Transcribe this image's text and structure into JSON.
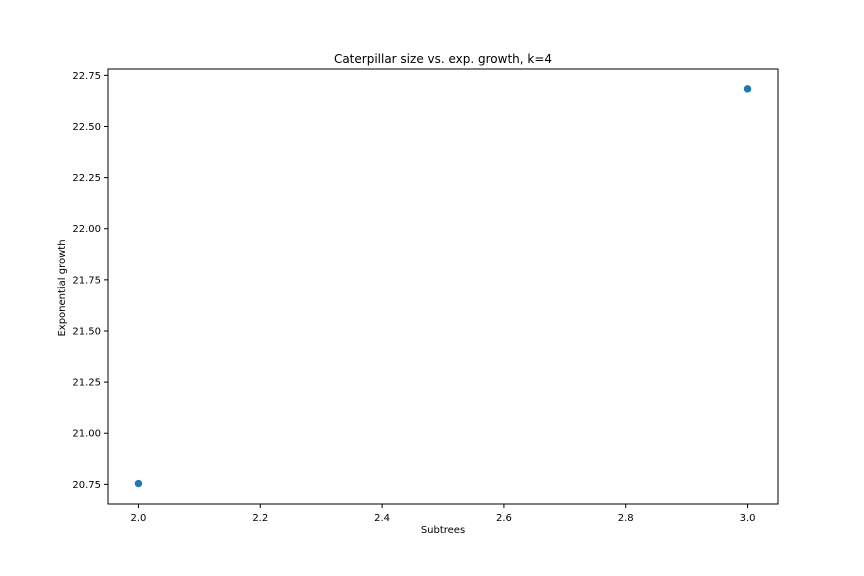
{
  "chart_data": {
    "type": "scatter",
    "title": "Caterpillar size vs. exp. growth, k=4",
    "xlabel": "Subtrees",
    "ylabel": "Exponential growth",
    "xlim": [
      1.95,
      3.05
    ],
    "ylim": [
      20.654,
      22.781
    ],
    "x_ticks": [
      2.0,
      2.2,
      2.4,
      2.6,
      2.8,
      3.0
    ],
    "x_tick_labels": [
      "2.0",
      "2.2",
      "2.4",
      "2.6",
      "2.8",
      "3.0"
    ],
    "y_ticks": [
      20.75,
      21.0,
      21.25,
      21.5,
      21.75,
      22.0,
      22.25,
      22.5,
      22.75
    ],
    "y_tick_labels": [
      "20.75",
      "21.00",
      "21.25",
      "21.50",
      "21.75",
      "22.00",
      "22.25",
      "22.50",
      "22.75"
    ],
    "grid": false,
    "marker_color": "#1f77b4",
    "points": [
      {
        "x": 2.0,
        "y": 20.754
      },
      {
        "x": 3.0,
        "y": 22.684
      }
    ]
  }
}
